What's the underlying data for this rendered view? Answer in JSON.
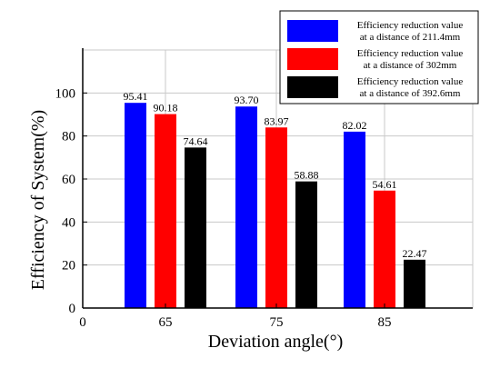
{
  "chart_data": {
    "type": "bar",
    "categories": [
      "65",
      "75",
      "85"
    ],
    "x_axis_origin_label": "0",
    "series": [
      {
        "name": "Efficiency reduction value at a distance of 211.4mm",
        "legend_lines": [
          "Efficiency reduction value",
          "at a distance of 211.4mm"
        ],
        "color": "#0000ff",
        "values": [
          95.41,
          93.7,
          82.02
        ],
        "labels": [
          "95.41",
          "93.70",
          "82.02"
        ]
      },
      {
        "name": "Efficiency reduction value at a distance of 302mm",
        "legend_lines": [
          "Efficiency reduction value",
          "at a distance of 302mm"
        ],
        "color": "#ff0000",
        "values": [
          90.18,
          83.97,
          54.61
        ],
        "labels": [
          "90.18",
          "83.97",
          "54.61"
        ]
      },
      {
        "name": "Efficiency reduction value at a distance of 392.6mm",
        "legend_lines": [
          "Efficiency reduction value",
          "at a distance of 392.6mm"
        ],
        "color": "#000000",
        "values": [
          74.64,
          58.88,
          22.47
        ],
        "labels": [
          "74.64",
          "58.88",
          "22.47"
        ]
      }
    ],
    "xlabel": "Deviation angle(°)",
    "ylabel": "Efficiency of System(%)",
    "ylim": [
      0,
      120
    ],
    "yticks": [
      "0",
      "20",
      "40",
      "60",
      "80",
      "100"
    ],
    "grid": true,
    "legend_position": "top-right"
  }
}
